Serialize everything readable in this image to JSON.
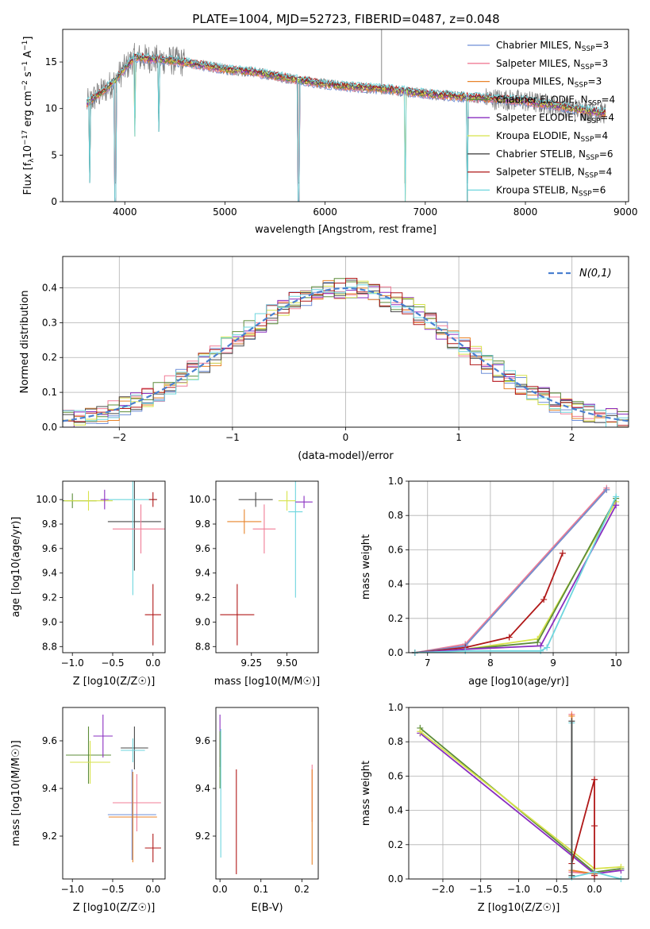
{
  "title": "PLATE=1004, MJD=52723, FIBERID=0487, z=0.048",
  "colors": {
    "chabrier_miles": "#6f8fd8",
    "salpeter_miles": "#f07c96",
    "kroupa_miles": "#e8832a",
    "chabrier_elodie": "#5c8c38",
    "salpeter_elodie": "#8a2fc0",
    "kroupa_elodie": "#d7e34a",
    "chabrier_stelib": "#4a4a4a",
    "salpeter_stelib": "#b01818",
    "kroupa_stelib": "#6ed6de",
    "gaussian": "#4a80d0"
  },
  "chart_data": [
    {
      "id": "spectrum",
      "type": "line",
      "xlabel": "wavelength [Angstrom, rest frame]",
      "ylabel": "Flux [f_λ10^-17 erg cm^-2 s^-1 A^-1]",
      "xlim": [
        3380,
        9030
      ],
      "ylim": [
        0,
        18.5
      ],
      "xticks": [
        4000,
        5000,
        6000,
        7000,
        8000,
        9000
      ],
      "yticks": [
        0,
        5,
        10,
        15
      ],
      "grid": false,
      "legend_position": "top-right",
      "legend": [
        {
          "label": "Chabrier MILES, N",
          "sub": "SSP",
          "tail": "=3",
          "color_key": "chabrier_miles"
        },
        {
          "label": "Salpeter MILES, N",
          "sub": "SSP",
          "tail": "=3",
          "color_key": "salpeter_miles"
        },
        {
          "label": "Kroupa MILES, N",
          "sub": "SSP",
          "tail": "=3",
          "color_key": "kroupa_miles"
        },
        {
          "label": "Chabrier ELODIE, N",
          "sub": "SSP",
          "tail": "=4",
          "color_key": "chabrier_elodie"
        },
        {
          "label": "Salpeter ELODIE, N",
          "sub": "SSP",
          "tail": "=4",
          "color_key": "salpeter_elodie"
        },
        {
          "label": "Kroupa ELODIE, N",
          "sub": "SSP",
          "tail": "=4",
          "color_key": "kroupa_elodie"
        },
        {
          "label": "Chabrier STELIB, N",
          "sub": "SSP",
          "tail": "=6",
          "color_key": "chabrier_stelib"
        },
        {
          "label": "Salpeter STELIB, N",
          "sub": "SSP",
          "tail": "=4",
          "color_key": "salpeter_stelib"
        },
        {
          "label": "Kroupa STELIB, N",
          "sub": "SSP",
          "tail": "=6",
          "color_key": "kroupa_stelib"
        }
      ],
      "continuum": {
        "x": [
          3620,
          3700,
          3800,
          3900,
          4000,
          4100,
          4300,
          4500,
          4800,
          5000,
          5300,
          5600,
          6000,
          6300,
          6600,
          7000,
          7300,
          7600,
          8000,
          8300,
          8600,
          8800
        ],
        "y": [
          10.5,
          11.2,
          12.0,
          13.0,
          14.3,
          15.5,
          15.3,
          15.1,
          14.6,
          14.2,
          13.9,
          13.3,
          12.6,
          12.3,
          12.1,
          11.6,
          11.3,
          11.1,
          10.8,
          10.3,
          9.8,
          9.5
        ]
      },
      "dips": [
        {
          "x": 3650,
          "y": 2
        },
        {
          "x": 3905,
          "y": 0
        },
        {
          "x": 4102,
          "y": 7
        },
        {
          "x": 4340,
          "y": 7.5
        },
        {
          "x": 5735,
          "y": 0
        },
        {
          "x": 6800,
          "y": 0
        },
        {
          "x": 7420,
          "y": 0
        }
      ],
      "spike": {
        "x": 6563,
        "y": 18.5
      }
    },
    {
      "id": "residuals",
      "type": "step",
      "xlabel": "(data-model)/error",
      "ylabel": "Normed distribution",
      "xlim": [
        -2.5,
        2.5
      ],
      "ylim": [
        0,
        0.49
      ],
      "xticks": [
        -2,
        -1,
        0,
        1,
        2
      ],
      "yticks": [
        0.0,
        0.1,
        0.2,
        0.3,
        0.4
      ],
      "grid": true,
      "legend_position": "top-right",
      "legend_label": "N(0,1)",
      "bin_width": 0.1
    },
    {
      "id": "age-vs-Z",
      "type": "errorbar",
      "xlabel": "Z [log10(Z/Z☉)]",
      "ylabel": "age [log10(age/yr)]",
      "xlim": [
        -1.12,
        0.15
      ],
      "ylim": [
        8.75,
        10.15
      ],
      "xticks": [
        -1.0,
        -0.5,
        0.0
      ],
      "yticks": [
        8.8,
        9.0,
        9.2,
        9.4,
        9.6,
        9.8,
        10.0
      ],
      "points": [
        {
          "color_key": "chabrier_elodie",
          "x": -1.0,
          "xerr": 0.3,
          "y": 9.99,
          "yerr": 0.06
        },
        {
          "color_key": "kroupa_elodie",
          "x": -0.8,
          "xerr": 0.3,
          "y": 9.99,
          "yerr": 0.08
        },
        {
          "color_key": "salpeter_elodie",
          "x": -0.6,
          "xerr": 0.05,
          "y": 10.0,
          "yerr": 0.08
        },
        {
          "color_key": "chabrier_stelib",
          "x": -0.23,
          "xerr": 0.33,
          "y": 9.82,
          "yerr": 0.4
        },
        {
          "color_key": "kroupa_stelib",
          "x": -0.25,
          "xerr": 0.3,
          "y": 10.0,
          "yerr": 0.78
        },
        {
          "color_key": "salpeter_miles",
          "x": -0.15,
          "xerr": 0.35,
          "y": 9.76,
          "yerr": 0.2
        },
        {
          "color_key": "salpeter_stelib",
          "x": 0.0,
          "xerr": 0.1,
          "y": 9.06,
          "yerr": 0.25
        },
        {
          "color_key": "salpeter_stelib",
          "x": 0.0,
          "xerr": 0.05,
          "y": 10.0,
          "yerr": 0.06
        }
      ]
    },
    {
      "id": "age-vs-mass",
      "type": "errorbar",
      "xlabel": "mass [log10(M/M☉)]",
      "xlim": [
        9.0,
        9.72
      ],
      "ylim": [
        8.75,
        10.15
      ],
      "xticks": [
        9.25,
        9.5
      ],
      "yticks": [
        8.8,
        9.0,
        9.2,
        9.4,
        9.6,
        9.8,
        10.0
      ],
      "points": [
        {
          "color_key": "salpeter_stelib",
          "x": 9.15,
          "xerr": 0.12,
          "y": 9.06,
          "yerr": 0.25
        },
        {
          "color_key": "chabrier_stelib",
          "x": 9.28,
          "xerr": 0.12,
          "y": 10.0,
          "yerr": 0.06
        },
        {
          "color_key": "kroupa_miles",
          "x": 9.2,
          "xerr": 0.12,
          "y": 9.82,
          "yerr": 0.1
        },
        {
          "color_key": "salpeter_miles",
          "x": 9.34,
          "xerr": 0.08,
          "y": 9.76,
          "yerr": 0.2
        },
        {
          "color_key": "kroupa_stelib",
          "x": 9.56,
          "xerr": 0.05,
          "y": 9.9,
          "yerr": 0.7
        },
        {
          "color_key": "kroupa_elodie",
          "x": 9.5,
          "xerr": 0.06,
          "y": 9.99,
          "yerr": 0.08
        },
        {
          "color_key": "salpeter_elodie",
          "x": 9.62,
          "xerr": 0.06,
          "y": 9.98,
          "yerr": 0.05
        }
      ]
    },
    {
      "id": "mass-weight-vs-age",
      "type": "line",
      "xlabel": "age [log10(age/yr)]",
      "ylabel": "mass weight",
      "xlim": [
        6.7,
        10.2
      ],
      "ylim": [
        0,
        1.0
      ],
      "xticks": [
        7,
        8,
        9,
        10
      ],
      "yticks": [
        0.0,
        0.2,
        0.4,
        0.6,
        0.8,
        1.0
      ],
      "grid": true,
      "series": [
        {
          "color_key": "salpeter_miles",
          "x": [
            6.8,
            7.6,
            9.85
          ],
          "y": [
            0.0,
            0.05,
            0.96
          ]
        },
        {
          "color_key": "kroupa_miles",
          "x": [
            6.8,
            7.6,
            9.85
          ],
          "y": [
            0.0,
            0.04,
            0.95
          ]
        },
        {
          "color_key": "chabrier_miles",
          "x": [
            6.8,
            7.6,
            9.85
          ],
          "y": [
            0.0,
            0.04,
            0.95
          ]
        },
        {
          "color_key": "salpeter_stelib",
          "x": [
            6.8,
            7.6,
            8.3,
            8.85,
            9.15
          ],
          "y": [
            0.0,
            0.03,
            0.09,
            0.31,
            0.58
          ]
        },
        {
          "color_key": "kroupa_elodie",
          "x": [
            6.8,
            7.6,
            8.75,
            10.0
          ],
          "y": [
            0.0,
            0.02,
            0.08,
            0.88
          ]
        },
        {
          "color_key": "chabrier_elodie",
          "x": [
            6.8,
            7.6,
            8.75,
            10.0
          ],
          "y": [
            0.0,
            0.02,
            0.06,
            0.9
          ]
        },
        {
          "color_key": "salpeter_elodie",
          "x": [
            6.8,
            7.6,
            8.8,
            10.0
          ],
          "y": [
            0.0,
            0.02,
            0.04,
            0.86
          ]
        },
        {
          "color_key": "kroupa_stelib",
          "x": [
            6.8,
            7.6,
            8.8,
            8.9,
            10.0
          ],
          "y": [
            0.0,
            0.01,
            0.01,
            0.03,
            0.91
          ]
        }
      ]
    },
    {
      "id": "mass-vs-Z",
      "type": "errorbar",
      "xlabel": "Z [log10(Z/Z☉)]",
      "ylabel": "mass [log10(M/M☉)]",
      "xlim": [
        -1.12,
        0.15
      ],
      "ylim": [
        9.02,
        9.74
      ],
      "xticks": [
        -1.0,
        -0.5,
        0.0
      ],
      "yticks": [
        9.2,
        9.4,
        9.6
      ],
      "points": [
        {
          "color_key": "chabrier_elodie",
          "x": -0.8,
          "xerr": 0.28,
          "y": 9.54,
          "yerr": 0.12
        },
        {
          "color_key": "kroupa_elodie",
          "x": -0.78,
          "xerr": 0.25,
          "y": 9.51,
          "yerr": 0.09
        },
        {
          "color_key": "salpeter_elodie",
          "x": -0.62,
          "xerr": 0.12,
          "y": 9.62,
          "yerr": 0.09
        },
        {
          "color_key": "chabrier_stelib",
          "x": -0.23,
          "xerr": 0.17,
          "y": 9.57,
          "yerr": 0.09
        },
        {
          "color_key": "kroupa_stelib",
          "x": -0.25,
          "xerr": 0.15,
          "y": 9.56,
          "yerr": 0.05
        },
        {
          "color_key": "salpeter_miles",
          "x": -0.2,
          "xerr": 0.3,
          "y": 9.34,
          "yerr": 0.12
        },
        {
          "color_key": "chabrier_miles",
          "x": -0.26,
          "xerr": 0.3,
          "y": 9.29,
          "yerr": 0.19
        },
        {
          "color_key": "kroupa_miles",
          "x": -0.25,
          "xerr": 0.3,
          "y": 9.28,
          "yerr": 0.19
        },
        {
          "color_key": "salpeter_stelib",
          "x": 0.0,
          "xerr": 0.1,
          "y": 9.15,
          "yerr": 0.06
        }
      ]
    },
    {
      "id": "mass-vs-ebv",
      "type": "errorbar",
      "xlabel": "E(B-V)",
      "xlim": [
        -0.01,
        0.24
      ],
      "ylim": [
        9.02,
        9.74
      ],
      "xticks": [
        0.0,
        0.1,
        0.2
      ],
      "yticks": [
        9.2,
        9.4,
        9.6
      ],
      "points": [
        {
          "color_key": "salpeter_elodie",
          "x": 0.0,
          "xerr": 0,
          "y": 9.6,
          "yerr": 0.11
        },
        {
          "color_key": "chabrier_elodie",
          "x": 0.0,
          "xerr": 0,
          "y": 9.52,
          "yerr": 0.12
        },
        {
          "color_key": "kroupa_stelib",
          "x": 0.002,
          "xerr": 0,
          "y": 9.38,
          "yerr": 0.27
        },
        {
          "color_key": "salpeter_stelib",
          "x": 0.04,
          "xerr": 0,
          "y": 9.26,
          "yerr": 0.22
        },
        {
          "color_key": "salpeter_miles",
          "x": 0.225,
          "xerr": 0,
          "y": 9.38,
          "yerr": 0.12
        },
        {
          "color_key": "kroupa_miles",
          "x": 0.225,
          "xerr": 0,
          "y": 9.28,
          "yerr": 0.2
        }
      ]
    },
    {
      "id": "mass-weight-vs-Z",
      "type": "line",
      "xlabel": "Z [log10(Z/Z☉)]",
      "ylabel": "mass weight",
      "xlim": [
        -2.45,
        0.45
      ],
      "ylim": [
        0,
        1.0
      ],
      "xticks": [
        -2.0,
        -1.5,
        -1.0,
        -0.5,
        0.0
      ],
      "yticks": [
        0.0,
        0.2,
        0.4,
        0.6,
        0.8,
        1.0
      ],
      "grid": true,
      "series": [
        {
          "color_key": "chabrier_elodie",
          "x": [
            -2.3,
            0.0,
            0.35
          ],
          "y": [
            0.88,
            0.04,
            0.06
          ]
        },
        {
          "color_key": "salpeter_elodie",
          "x": [
            -2.3,
            0.0,
            0.35
          ],
          "y": [
            0.85,
            0.03,
            0.05
          ]
        },
        {
          "color_key": "kroupa_elodie",
          "x": [
            -2.3,
            0.0,
            0.35
          ],
          "y": [
            0.86,
            0.06,
            0.07
          ]
        },
        {
          "color_key": "salpeter_miles",
          "x": [
            -0.3,
            -0.3,
            0.0,
            0.0
          ],
          "y": [
            0.96,
            0.04,
            0.03,
            0.02
          ]
        },
        {
          "color_key": "kroupa_miles",
          "x": [
            -0.3,
            -0.3,
            0.0
          ],
          "y": [
            0.95,
            0.05,
            0.03
          ]
        },
        {
          "color_key": "salpeter_stelib",
          "x": [
            -0.3,
            0.0,
            0.0,
            0.0
          ],
          "y": [
            0.09,
            0.58,
            0.31,
            0.02
          ]
        },
        {
          "color_key": "kroupa_stelib",
          "x": [
            -0.3,
            -0.3,
            0.0,
            0.35
          ],
          "y": [
            0.91,
            0.01,
            0.04,
            0.0
          ]
        },
        {
          "color_key": "chabrier_stelib",
          "x": [
            -0.3,
            -0.3
          ],
          "y": [
            0.92,
            0.02
          ]
        }
      ]
    }
  ]
}
